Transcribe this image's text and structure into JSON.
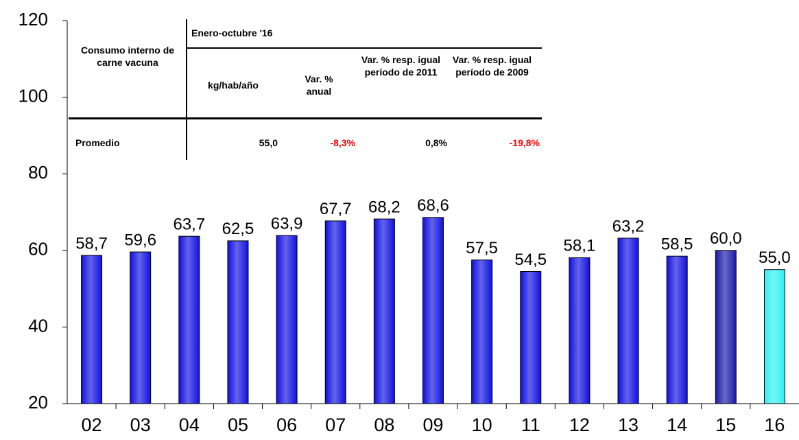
{
  "chart_data": {
    "type": "bar",
    "categories": [
      "02",
      "03",
      "04",
      "05",
      "06",
      "07",
      "08",
      "09",
      "10",
      "11",
      "12",
      "13",
      "14",
      "15",
      "16"
    ],
    "values": [
      58.7,
      59.6,
      63.7,
      62.5,
      63.9,
      67.7,
      68.2,
      68.6,
      57.5,
      54.5,
      58.1,
      63.2,
      58.5,
      60.0,
      55.0
    ],
    "value_labels": [
      "58,7",
      "59,6",
      "63,7",
      "62,5",
      "63,9",
      "67,7",
      "68,2",
      "68,6",
      "57,5",
      "54,5",
      "58,1",
      "63,2",
      "58,5",
      "60,0",
      "55,0"
    ],
    "colors": [
      "#1010e0",
      "#1010e0",
      "#1010e0",
      "#1010e0",
      "#1010e0",
      "#1010e0",
      "#1010e0",
      "#1010e0",
      "#1010e0",
      "#1010e0",
      "#1010e0",
      "#1010e0",
      "#1010e0",
      "#1a1aa8",
      "#30f0f0"
    ],
    "ylim": [
      20,
      120
    ],
    "yticks": [
      20,
      40,
      60,
      80,
      100,
      120
    ],
    "grid": false,
    "table": {
      "row_header": "Consumo interno de carne vacuna",
      "group_header": "Enero-octubre '16",
      "columns": [
        "kg/hab/año",
        "Var. % anual",
        "Var. % resp. igual período de 2011",
        "Var. % resp. igual período de 2009"
      ],
      "row_label": "Promedio",
      "row_values": [
        "55,0",
        "-8,3%",
        "0,8%",
        "-19,8%"
      ]
    }
  }
}
